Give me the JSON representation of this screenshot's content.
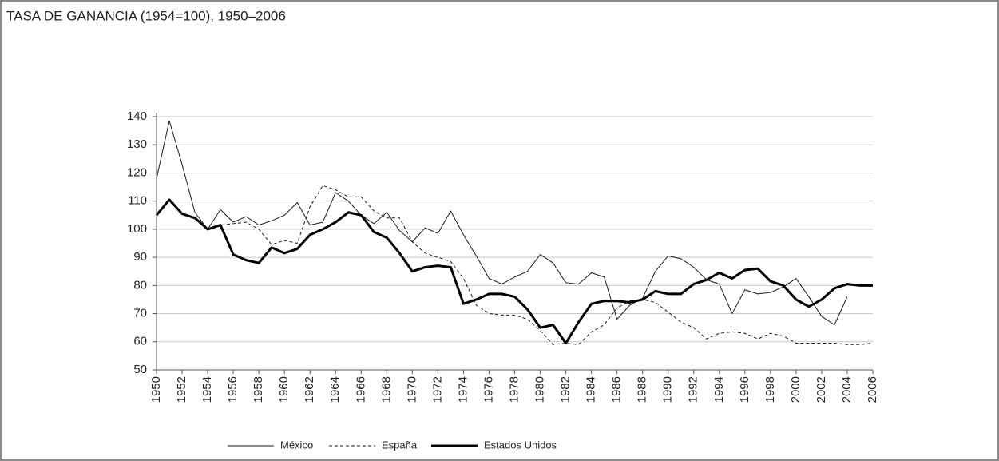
{
  "chart_data": {
    "type": "line",
    "title": "TASA DE GANANCIA (1954=100), 1950–2006",
    "x": [
      1950,
      1951,
      1952,
      1953,
      1954,
      1955,
      1956,
      1957,
      1958,
      1959,
      1960,
      1961,
      1962,
      1963,
      1964,
      1965,
      1966,
      1967,
      1968,
      1969,
      1970,
      1971,
      1972,
      1973,
      1974,
      1975,
      1976,
      1977,
      1978,
      1979,
      1980,
      1981,
      1982,
      1983,
      1984,
      1985,
      1986,
      1987,
      1988,
      1989,
      1990,
      1991,
      1992,
      1993,
      1994,
      1995,
      1996,
      1997,
      1998,
      1999,
      2000,
      2001,
      2002,
      2003,
      2004,
      2005,
      2006
    ],
    "series": [
      {
        "name": "México",
        "color": "#1a1a1a",
        "width": 1,
        "dash": "none",
        "values": [
          118,
          138.5,
          123,
          106,
          100,
          107,
          102.5,
          104.5,
          101.5,
          103,
          105,
          109.5,
          101.5,
          102.5,
          113,
          110,
          105,
          102,
          106,
          99.5,
          95.5,
          100.5,
          98.5,
          106.5,
          98,
          90.5,
          82.5,
          80.5,
          83,
          85,
          91,
          88,
          81,
          80.5,
          84.5,
          83,
          68,
          73,
          75.5,
          85,
          90.5,
          89.5,
          86.5,
          82,
          80.5,
          70,
          78.5,
          77,
          77.5,
          79.5,
          82.5,
          76,
          69,
          66,
          76,
          null,
          null
        ]
      },
      {
        "name": "España",
        "color": "#1a1a1a",
        "width": 1,
        "dash": "4 3",
        "values": [
          105,
          110.5,
          105.5,
          104,
          100,
          101.5,
          102,
          102.5,
          100,
          94.5,
          96,
          95,
          108,
          115.5,
          114,
          111.5,
          111.5,
          106.5,
          104,
          104,
          95.5,
          91.5,
          90,
          88.5,
          82.5,
          73,
          70,
          69.5,
          69.5,
          68,
          64,
          59,
          59.5,
          59,
          63.5,
          66,
          72,
          74.5,
          75,
          74,
          70.5,
          67,
          65,
          61,
          63,
          63.5,
          63,
          61,
          63,
          62,
          59.5,
          59.5,
          59.5,
          59.5,
          59,
          59,
          59.5
        ]
      },
      {
        "name": "Estados Unidos",
        "color": "#000000",
        "width": 3,
        "dash": "none",
        "values": [
          105,
          110.5,
          105.5,
          104,
          100,
          101.5,
          91,
          89,
          88,
          93.5,
          91.5,
          93,
          98,
          100,
          102.5,
          106,
          105,
          99,
          97,
          91.5,
          85,
          86.5,
          87,
          86.5,
          73.5,
          75,
          77,
          77,
          76,
          71.5,
          65,
          66,
          59.5,
          67,
          73.5,
          74.5,
          74.5,
          74,
          75,
          78,
          77,
          77,
          80.5,
          82,
          84.5,
          82.5,
          85.5,
          86,
          81.5,
          80,
          75,
          72.5,
          75,
          79,
          80.5,
          80,
          80
        ]
      }
    ],
    "xlim": [
      1950,
      2006
    ],
    "xticks": [
      1950,
      1952,
      1954,
      1956,
      1958,
      1960,
      1962,
      1964,
      1966,
      1968,
      1970,
      1972,
      1974,
      1976,
      1978,
      1980,
      1982,
      1984,
      1986,
      1988,
      1990,
      1992,
      1994,
      1996,
      1998,
      2000,
      2002,
      2004,
      2006
    ],
    "ylim": [
      50,
      140
    ],
    "yticks": [
      50,
      60,
      70,
      80,
      90,
      100,
      110,
      120,
      130,
      140
    ],
    "grid": true
  }
}
